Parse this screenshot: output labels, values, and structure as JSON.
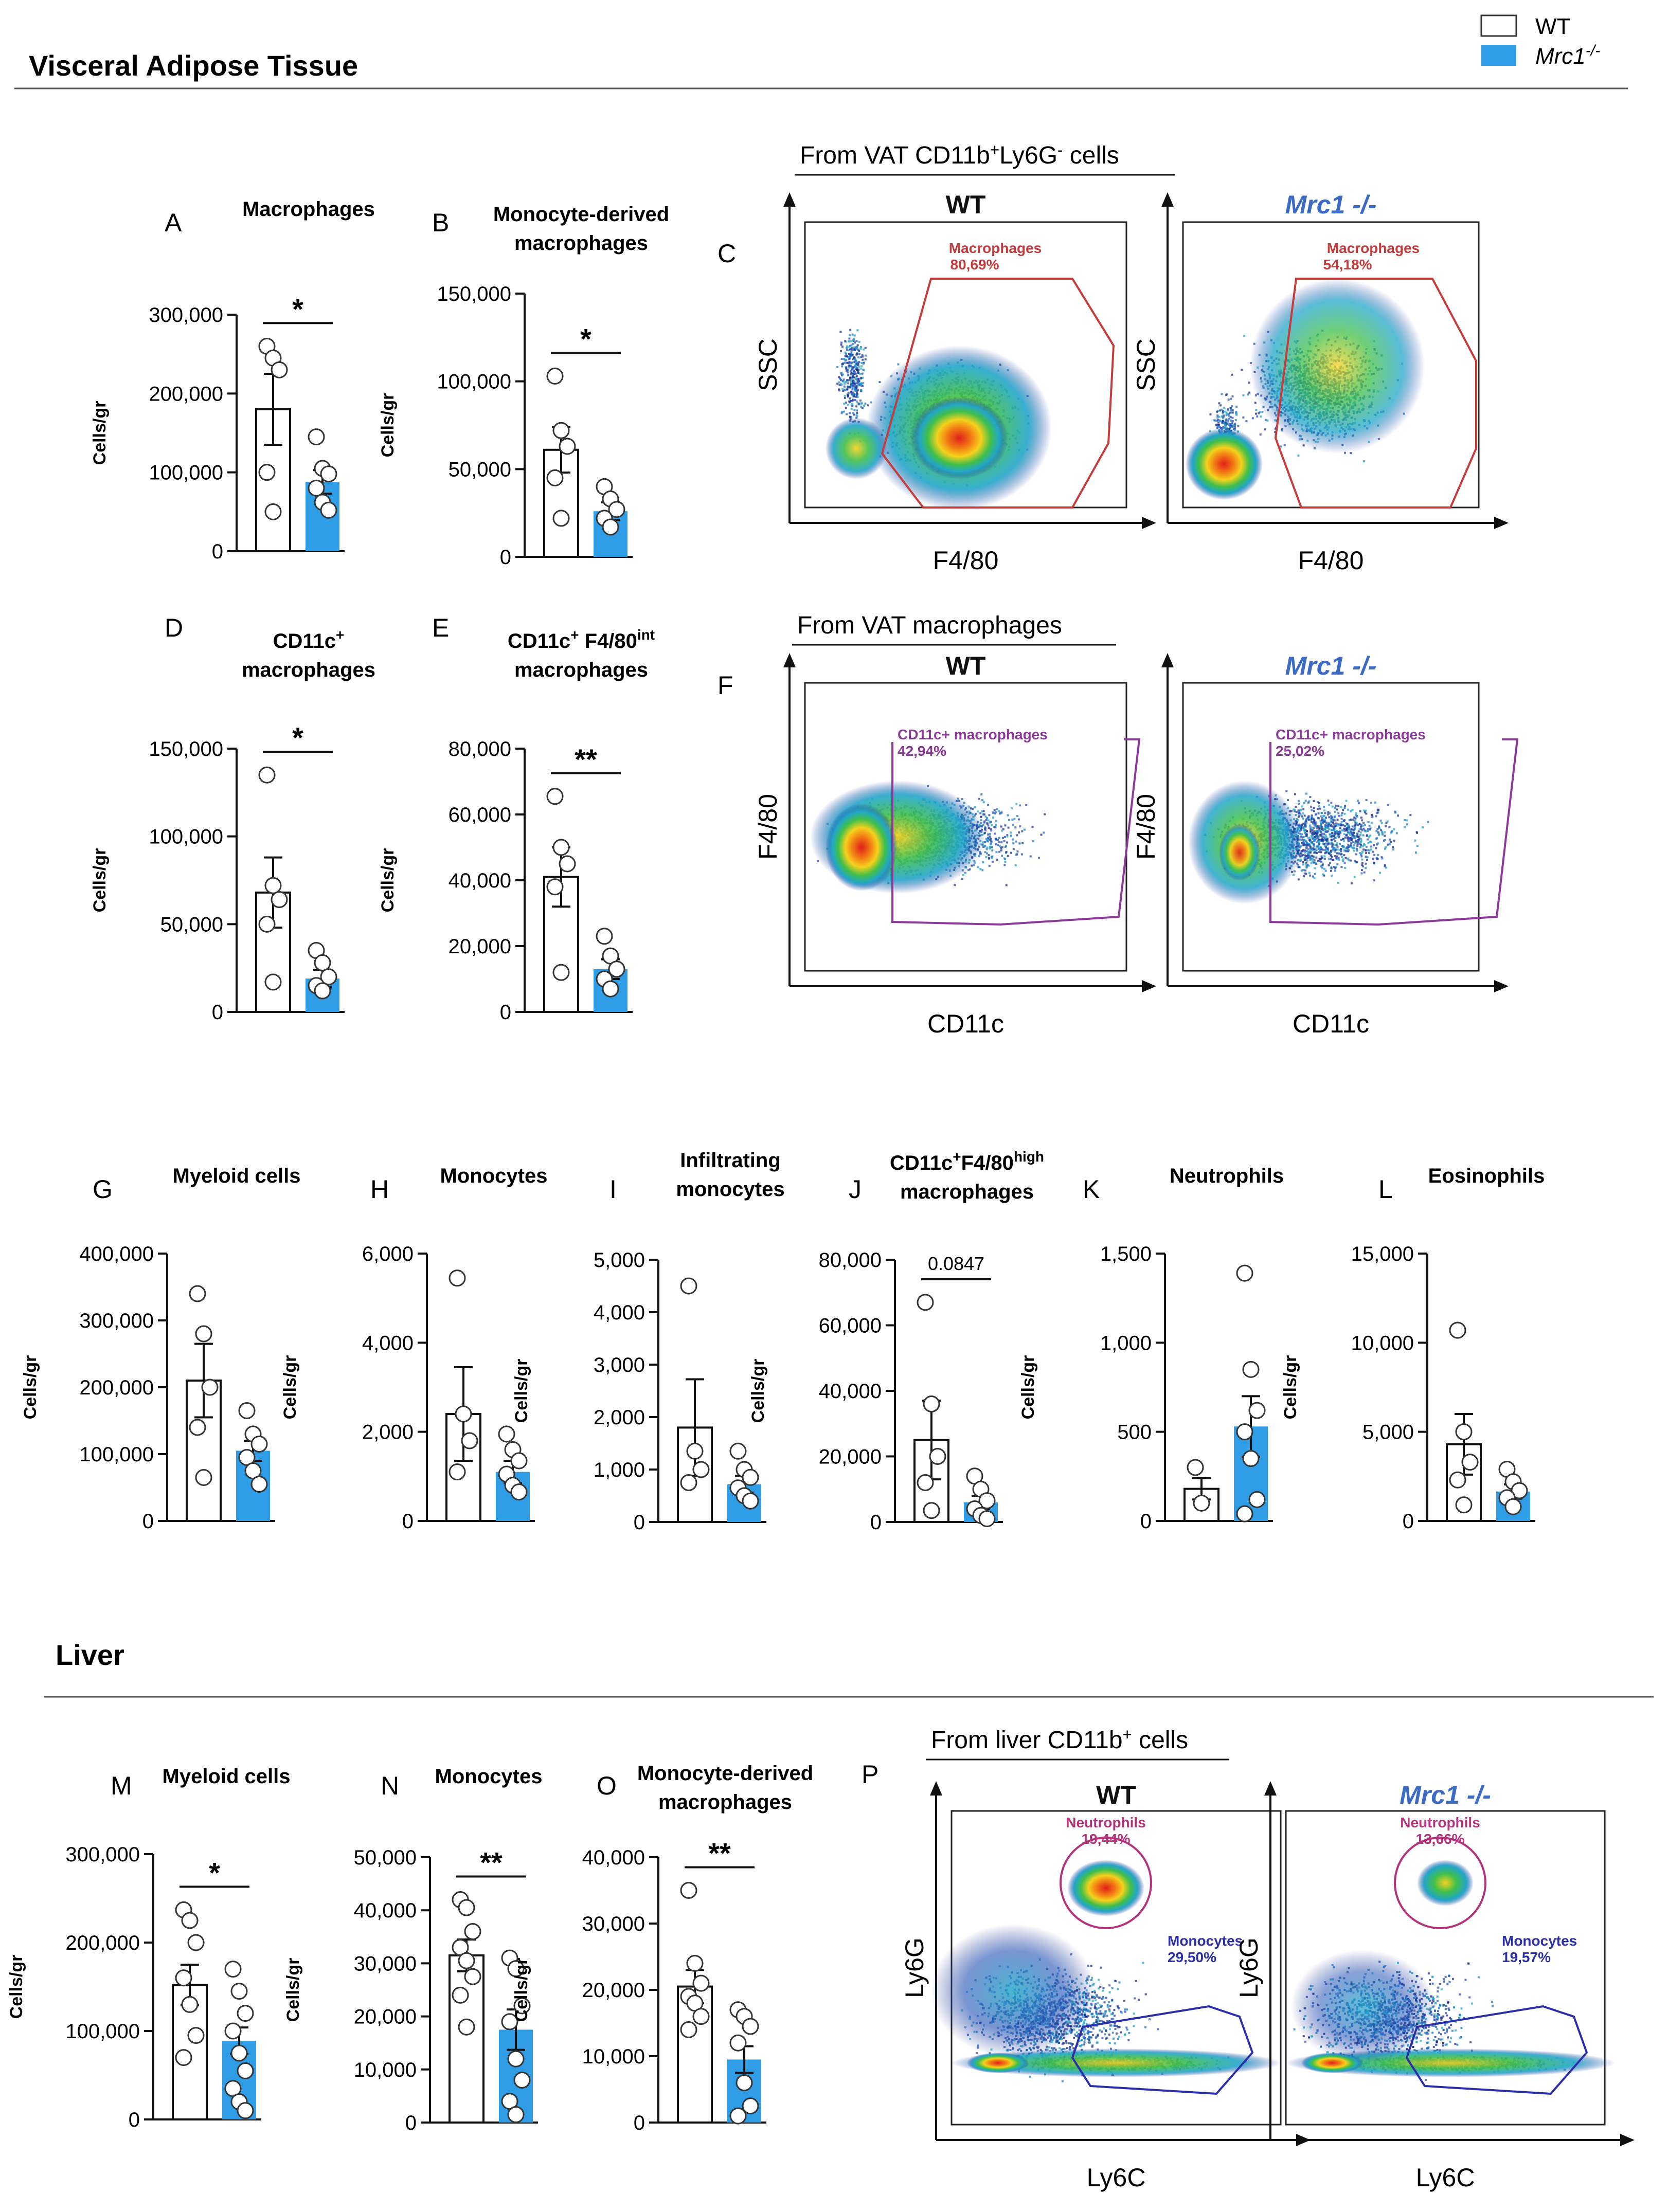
{
  "colors": {
    "wt_fill": "#ffffff",
    "ko_fill": "#2e9de5",
    "edge": "#111111",
    "ko_title": "#3b6bc4",
    "gate_red": "#c43c3c",
    "gate_purple": "#8c3a99",
    "gate_magenta": "#b4327c",
    "gate_blue": "#2a2fa8"
  },
  "header": {
    "section_vat": "Visceral Adipose Tissue",
    "section_liver": "Liver"
  },
  "legend": {
    "wt": "WT",
    "ko_base": "Mrc1",
    "ko_sup": "-/-"
  },
  "chart_data": [
    {
      "id": "A",
      "type": "bar",
      "panel_letter": "A",
      "title": [
        "Macrophages"
      ],
      "ylabel": "Cells/gr",
      "ylim": [
        0,
        300000
      ],
      "ticks": [
        "0",
        "100,000",
        "200,000",
        "300,000"
      ],
      "categories": [
        "WT",
        "Mrc1-/-"
      ],
      "values": [
        180000,
        88000
      ],
      "sem": [
        45000,
        15000
      ],
      "points": [
        [
          260000,
          245000,
          230000,
          100000,
          50000
        ],
        [
          145000,
          105000,
          98000,
          80000,
          62000,
          52000
        ]
      ],
      "sig": "*"
    },
    {
      "id": "B",
      "type": "bar",
      "panel_letter": "B",
      "title": [
        "Monocyte-derived",
        "macrophages"
      ],
      "ylabel": "Cells/gr",
      "ylim": [
        0,
        150000
      ],
      "ticks": [
        "0",
        "50,000",
        "100,000",
        "150,000"
      ],
      "categories": [
        "WT",
        "Mrc1-/-"
      ],
      "values": [
        61000,
        26000
      ],
      "sem": [
        13000,
        5000
      ],
      "points": [
        [
          103000,
          72000,
          63000,
          45000,
          22000
        ],
        [
          40000,
          33000,
          27000,
          22000,
          17000
        ]
      ],
      "sig": "*"
    },
    {
      "id": "D",
      "type": "bar",
      "panel_letter": "D",
      "title": [
        "CD11c",
        "macrophages"
      ],
      "title_sup": "+",
      "ylabel": "Cells/gr",
      "ylim": [
        0,
        150000
      ],
      "ticks": [
        "0",
        "50,000",
        "100,000",
        "150,000"
      ],
      "categories": [
        "WT",
        "Mrc1-/-"
      ],
      "values": [
        68000,
        19000
      ],
      "sem": [
        20000,
        5000
      ],
      "points": [
        [
          135000,
          72000,
          64000,
          50000,
          17000
        ],
        [
          35000,
          28000,
          20000,
          15000,
          12000
        ]
      ],
      "sig": "*"
    },
    {
      "id": "E",
      "type": "bar",
      "panel_letter": "E",
      "title": [
        "CD11c",
        "macrophages"
      ],
      "title_parts": [
        "CD11c",
        "+",
        " F4/80",
        "int"
      ],
      "ylabel": "Cells/gr",
      "ylim": [
        0,
        80000
      ],
      "ticks": [
        "0",
        "20,000",
        "40,000",
        "60,000",
        "80,000"
      ],
      "categories": [
        "WT",
        "Mrc1-/-"
      ],
      "values": [
        41000,
        13000
      ],
      "sem": [
        9000,
        3000
      ],
      "points": [
        [
          65500,
          50000,
          45000,
          38000,
          12000
        ],
        [
          23000,
          17000,
          13000,
          10000,
          7000
        ]
      ],
      "sig": "**"
    },
    {
      "id": "G",
      "type": "bar",
      "panel_letter": "G",
      "title": [
        "Myeloid cells"
      ],
      "ylabel": "Cells/gr",
      "ylim": [
        0,
        400000
      ],
      "ticks": [
        "0",
        "100,000",
        "200,000",
        "300,000",
        "400,000"
      ],
      "categories": [
        "WT",
        "Mrc1-/-"
      ],
      "values": [
        210000,
        105000
      ],
      "sem": [
        55000,
        15000
      ],
      "points": [
        [
          340000,
          280000,
          200000,
          140000,
          65000
        ],
        [
          165000,
          130000,
          115000,
          95000,
          75000,
          55000
        ]
      ],
      "sig": ""
    },
    {
      "id": "H",
      "type": "bar",
      "panel_letter": "H",
      "title": [
        "Monocytes"
      ],
      "ylabel": "Cells/gr",
      "ylim": [
        0,
        6000
      ],
      "ticks": [
        "0",
        "2,000",
        "4,000",
        "6,000"
      ],
      "categories": [
        "WT",
        "Mrc1-/-"
      ],
      "values": [
        2400,
        1100
      ],
      "sem": [
        1050,
        250
      ],
      "points": [
        [
          5450,
          2400,
          1800,
          1100
        ],
        [
          1950,
          1600,
          1350,
          1050,
          800,
          650
        ]
      ],
      "sig": ""
    },
    {
      "id": "I",
      "type": "bar",
      "panel_letter": "I",
      "title": [
        "Infiltrating",
        "monocytes"
      ],
      "ylabel": "Cells/gr",
      "ylim": [
        0,
        5000
      ],
      "ticks": [
        "0",
        "1,000",
        "2,000",
        "3,000",
        "4,000",
        "5,000"
      ],
      "categories": [
        "WT",
        "Mrc1-/-"
      ],
      "values": [
        1800,
        720
      ],
      "sem": [
        920,
        160
      ],
      "points": [
        [
          4500,
          1350,
          1000,
          750
        ],
        [
          1350,
          1000,
          850,
          650,
          500,
          400
        ]
      ],
      "sig": ""
    },
    {
      "id": "J",
      "type": "bar",
      "panel_letter": "J",
      "title": [
        "CD11c",
        "macrophages"
      ],
      "title_parts": [
        "CD11c",
        "+",
        "F4/80",
        "high"
      ],
      "ylabel": "Cells/gr",
      "ylim": [
        0,
        80000
      ],
      "ticks": [
        "0",
        "20,000",
        "40,000",
        "60,000",
        "80,000"
      ],
      "categories": [
        "WT",
        "Mrc1-/-"
      ],
      "values": [
        25000,
        6000
      ],
      "sem": [
        12000,
        2000
      ],
      "points": [
        [
          67000,
          36000,
          20000,
          12000,
          3500
        ],
        [
          14000,
          10000,
          6500,
          4000,
          2000,
          1000
        ]
      ],
      "sig": "0.0847"
    },
    {
      "id": "K",
      "type": "bar",
      "panel_letter": "K",
      "title": [
        "Neutrophils"
      ],
      "ylabel": "Cells/gr",
      "ylim": [
        0,
        1500
      ],
      "ticks": [
        "0",
        "500",
        "1,000",
        "1,500"
      ],
      "categories": [
        "WT",
        "Mrc1-/-"
      ],
      "values": [
        180,
        530
      ],
      "sem": [
        60,
        170
      ],
      "points": [
        [
          300,
          100
        ],
        [
          1390,
          850,
          620,
          500,
          350,
          120,
          40
        ]
      ],
      "sig": ""
    },
    {
      "id": "L",
      "type": "bar",
      "panel_letter": "L",
      "title": [
        "Eosinophils"
      ],
      "ylabel": "Cells/gr",
      "ylim": [
        0,
        15000
      ],
      "ticks": [
        "0",
        "5,000",
        "10,000",
        "15,000"
      ],
      "categories": [
        "WT",
        "Mrc1-/-"
      ],
      "values": [
        4300,
        1650
      ],
      "sem": [
        1700,
        400
      ],
      "points": [
        [
          10700,
          5000,
          3300,
          2300,
          900
        ],
        [
          2900,
          2200,
          1700,
          1300,
          800
        ]
      ],
      "sig": ""
    },
    {
      "id": "M",
      "type": "bar",
      "panel_letter": "M",
      "title": [
        "Myeloid cells"
      ],
      "ylabel": "Cells/gr",
      "ylim": [
        0,
        300000
      ],
      "ticks": [
        "0",
        "100,000",
        "200,000",
        "300,000"
      ],
      "categories": [
        "WT",
        "Mrc1-/-"
      ],
      "values": [
        152000,
        89000
      ],
      "sem": [
        23000,
        15000
      ],
      "points": [
        [
          237000,
          225000,
          200000,
          160000,
          130000,
          95000,
          70000
        ],
        [
          170000,
          145000,
          120000,
          100000,
          75000,
          55000,
          35000,
          20000,
          10000
        ]
      ],
      "sig": "*"
    },
    {
      "id": "N",
      "type": "bar",
      "panel_letter": "N",
      "title": [
        "Monocytes"
      ],
      "ylabel": "Cells/gr",
      "ylim": [
        0,
        50000
      ],
      "ticks": [
        "0",
        "10,000",
        "20,000",
        "30,000",
        "40,000",
        "50,000"
      ],
      "categories": [
        "WT",
        "Mrc1-/-"
      ],
      "values": [
        31500,
        17500
      ],
      "sem": [
        3000,
        3800
      ],
      "points": [
        [
          42000,
          40500,
          36000,
          33000,
          30500,
          27500,
          24000,
          18000
        ],
        [
          31000,
          29000,
          22000,
          19000,
          12000,
          8000,
          4000,
          1500
        ]
      ],
      "sig": "**"
    },
    {
      "id": "O",
      "type": "bar",
      "panel_letter": "O",
      "title": [
        "Monocyte-derived",
        "macrophages"
      ],
      "ylabel": "Cells/gr",
      "ylim": [
        0,
        40000
      ],
      "ticks": [
        "0",
        "10,000",
        "20,000",
        "30,000",
        "40,000"
      ],
      "categories": [
        "WT",
        "Mrc1-/-"
      ],
      "values": [
        20500,
        9500
      ],
      "sem": [
        2500,
        2000
      ],
      "points": [
        [
          35000,
          24000,
          21000,
          19000,
          18000,
          16000,
          14000
        ],
        [
          17000,
          16000,
          14500,
          12000,
          6000,
          2500,
          1000
        ]
      ],
      "sig": "**"
    }
  ],
  "flow": {
    "C": {
      "letter": "C",
      "header_parts": [
        "From  VAT CD11b",
        "+",
        "Ly6G",
        "-",
        " cells"
      ],
      "wt": {
        "title": "WT",
        "gate_name": "Macrophages",
        "gate_pct": "80,69%"
      },
      "ko": {
        "title": "Mrc1 -/-",
        "gate_name": "Macrophages",
        "gate_pct": "54,18%"
      },
      "xlabel": "F4/80",
      "ylabel": "SSC"
    },
    "F": {
      "letter": "F",
      "header": "From  VAT macrophages",
      "wt": {
        "title": "WT",
        "gate_name": "CD11c+ macrophages",
        "gate_pct": "42,94%"
      },
      "ko": {
        "title": "Mrc1 -/-",
        "gate_name": "CD11c+ macrophages",
        "gate_pct": "25,02%"
      },
      "xlabel": "CD11c",
      "ylabel": "F4/80"
    },
    "P": {
      "letter": "P",
      "header_parts": [
        "From liver CD11b",
        "+",
        " cells"
      ],
      "wt": {
        "title": "WT",
        "neut_name": "Neutrophils",
        "neut_pct": "19,44%",
        "mono_name": "Monocytes",
        "mono_pct": "29,50%"
      },
      "ko": {
        "title": "Mrc1 -/-",
        "neut_name": "Neutrophils",
        "neut_pct": "13,66%",
        "mono_name": "Monocytes",
        "mono_pct": "19,57%"
      },
      "xlabel": "Ly6C",
      "ylabel": "Ly6G"
    }
  }
}
